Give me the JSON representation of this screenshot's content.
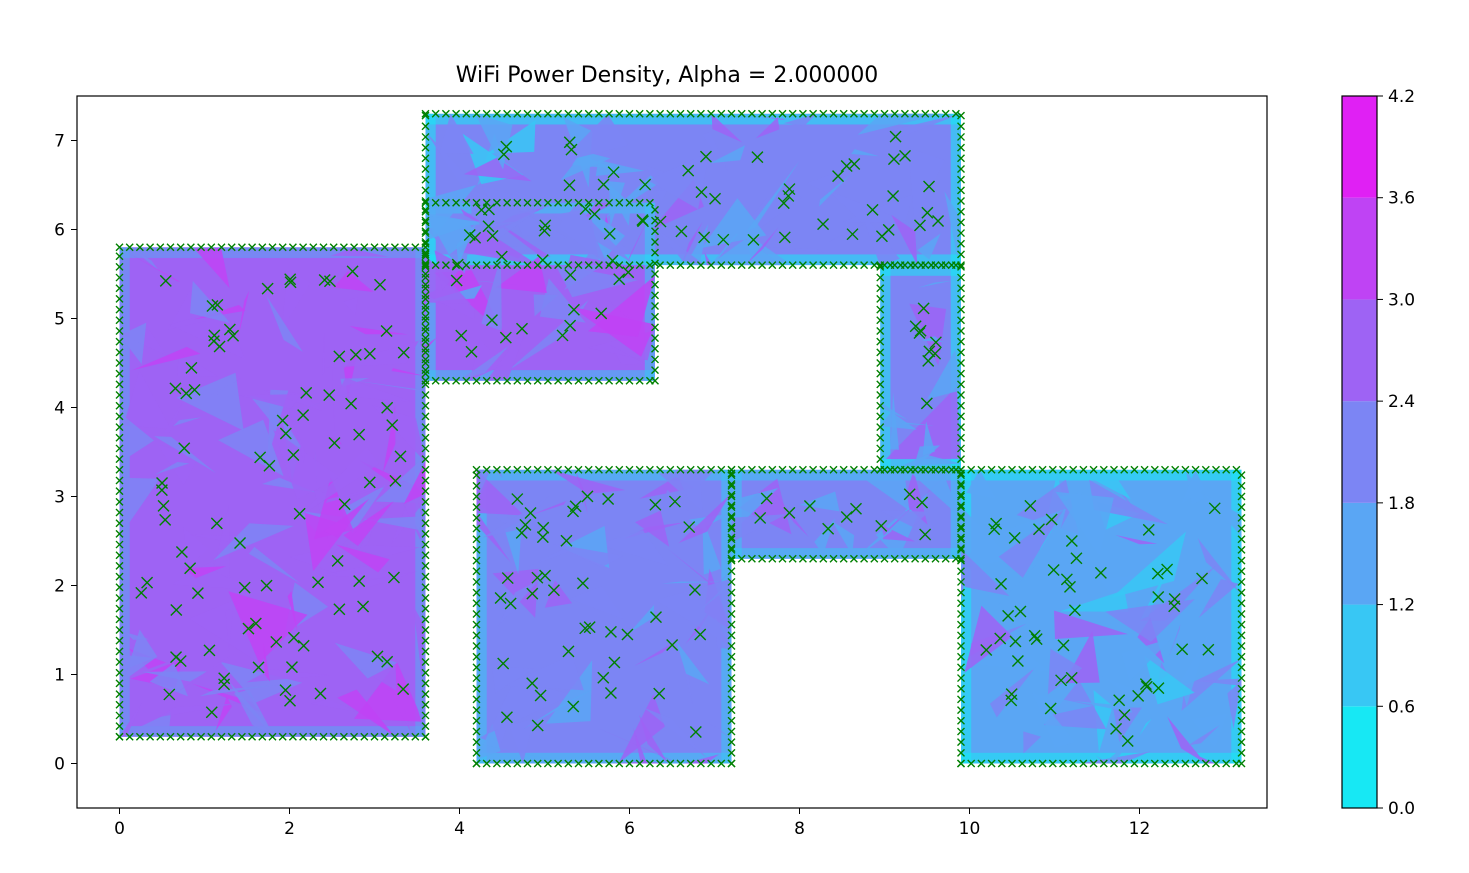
{
  "chart_data": {
    "type": "heatmap",
    "title": "WiFi Power Density, Alpha = 2.000000",
    "xlabel": "",
    "ylabel": "",
    "xlim": [
      -0.5,
      13.5
    ],
    "ylim": [
      -0.5,
      7.5
    ],
    "xticks": [
      0,
      2,
      4,
      6,
      8,
      10,
      12
    ],
    "yticks": [
      0,
      1,
      2,
      3,
      4,
      5,
      6,
      7
    ],
    "grid": false,
    "colormap": "cool",
    "colorbar": {
      "levels": [
        0.0,
        0.6,
        1.2,
        1.8,
        2.4,
        3.0,
        3.6,
        4.2
      ],
      "tick_labels": [
        "0.0",
        "0.6",
        "1.2",
        "1.8",
        "2.4",
        "3.0",
        "3.6",
        "4.2"
      ],
      "colors": [
        "#17e8f4",
        "#38c7f4",
        "#5aa6f4",
        "#7c85f4",
        "#9e63f4",
        "#bf43f4",
        "#e020f4"
      ]
    },
    "marker": {
      "symbol": "x",
      "color": "#008000",
      "meaning": "sample points"
    },
    "regions": [
      {
        "name": "left room",
        "x": [
          0.0,
          3.6
        ],
        "y": [
          0.3,
          5.8
        ],
        "typical_level": 2.6
      },
      {
        "name": "top room",
        "x": [
          3.6,
          6.3
        ],
        "y": [
          4.3,
          6.3
        ],
        "typical_level": 2.5
      },
      {
        "name": "top corridor",
        "x": [
          3.6,
          9.9
        ],
        "y": [
          5.6,
          7.3
        ],
        "typical_level": 1.9
      },
      {
        "name": "right vertical corridor",
        "x": [
          8.95,
          9.9
        ],
        "y": [
          3.3,
          5.6
        ],
        "typical_level": 1.9
      },
      {
        "name": "middle room",
        "x": [
          4.2,
          7.2
        ],
        "y": [
          0.0,
          3.3
        ],
        "typical_level": 2.2
      },
      {
        "name": "middle corridor",
        "x": [
          7.2,
          9.9
        ],
        "y": [
          2.3,
          3.3
        ],
        "typical_level": 2.0
      },
      {
        "name": "right room",
        "x": [
          9.9,
          13.2
        ],
        "y": [
          0.0,
          3.3
        ],
        "typical_level": 1.7
      }
    ]
  }
}
